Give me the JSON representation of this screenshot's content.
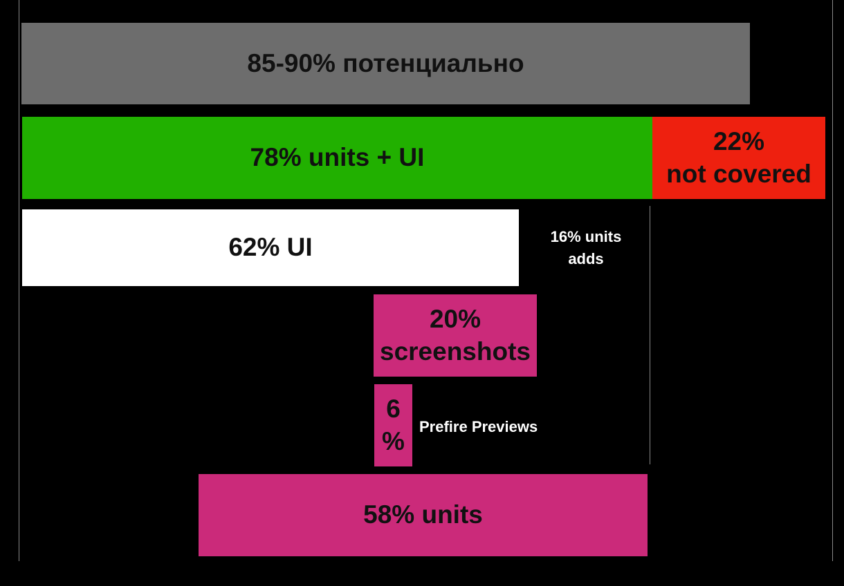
{
  "colors": {
    "background": "#000000",
    "potential": "#6d6d6d",
    "covered": "#21b000",
    "not_covered": "#ee200f",
    "ui": "#ffffff",
    "magenta": "#cb2a7a",
    "divider": "#8a8a8a",
    "text_dark": "#111111",
    "text_light": "#ffffff"
  },
  "bars": {
    "potential": {
      "label": "85-90% потенциально",
      "percent": "85-90"
    },
    "units_ui": {
      "label": "78% units + UI",
      "percent": 78
    },
    "not_covered": {
      "label": "22%\nnot covered",
      "percent": 22
    },
    "ui": {
      "label": "62% UI",
      "percent": 62
    },
    "screenshots": {
      "label": "20%\nscreenshots",
      "percent": 20
    },
    "prefire": {
      "label": "6\n%",
      "percent": 6
    },
    "units": {
      "label": "58% units",
      "percent": 58
    }
  },
  "notes": {
    "units_adds": "16% units\nadds",
    "prefire_previews": "Prefire Previews"
  }
}
